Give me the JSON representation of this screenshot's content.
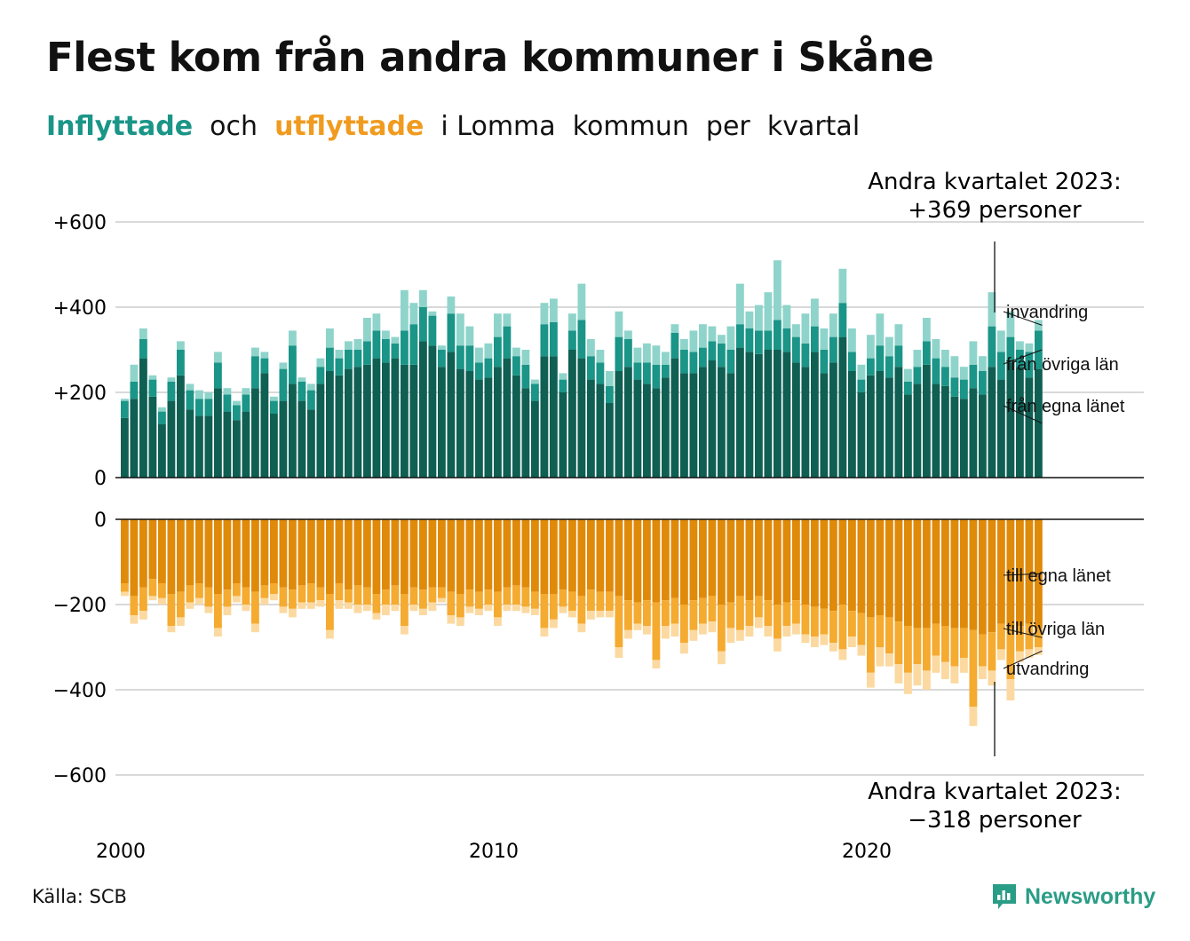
{
  "title": "Flest kom från andra kommuner i Skåne",
  "subtitle": {
    "in_word": "Inflyttade",
    "mid": "  och  ",
    "out_word": "utflyttade",
    "rest": "  i Lomma  kommun  per  kvartal"
  },
  "source": "Källa: SCB",
  "brand": "Newsworthy",
  "colors": {
    "in_own": "#0f5f53",
    "in_other": "#1a9587",
    "in_immig": "#8fd4cb",
    "out_own": "#e08a0a",
    "out_other": "#f5aa30",
    "out_emig": "#fbd9a0",
    "grid": "#d9d9d9",
    "axis": "#111111"
  },
  "annotations": {
    "top": [
      "Andra kvartalet 2023:",
      "+369 personer"
    ],
    "bottom": [
      "Andra kvartalet 2023:",
      "−318 personer"
    ]
  },
  "chart_data": {
    "type": "bar",
    "stacked": true,
    "x_start": "2000 Q1",
    "x_end": "2023 Q2",
    "x_ticks": [
      "2000",
      "2010",
      "2020"
    ],
    "top_panel": {
      "y_ticks": [
        "+600",
        "+400",
        "+200",
        "0"
      ],
      "ylim": [
        0,
        600
      ],
      "series": [
        {
          "name": "från egna länet",
          "values": [
            140,
            185,
            280,
            190,
            125,
            180,
            240,
            160,
            145,
            145,
            210,
            155,
            135,
            155,
            210,
            245,
            150,
            180,
            220,
            180,
            160,
            220,
            250,
            240,
            255,
            260,
            265,
            280,
            270,
            280,
            265,
            265,
            320,
            310,
            260,
            295,
            255,
            250,
            230,
            235,
            260,
            280,
            240,
            210,
            180,
            285,
            285,
            200,
            300,
            280,
            230,
            220,
            175,
            250,
            260,
            230,
            220,
            210,
            235,
            280,
            245,
            245,
            260,
            275,
            260,
            245,
            305,
            295,
            290,
            300,
            300,
            295,
            270,
            260,
            295,
            245,
            270,
            330,
            250,
            200,
            240,
            250,
            235,
            260,
            195,
            220,
            265,
            220,
            215,
            190,
            185,
            210,
            195,
            260,
            230,
            270,
            260,
            235,
            255
          ]
        },
        {
          "name": "från övriga län",
          "values": [
            40,
            40,
            45,
            40,
            30,
            45,
            60,
            45,
            40,
            40,
            60,
            40,
            35,
            40,
            75,
            35,
            30,
            75,
            90,
            45,
            45,
            40,
            55,
            40,
            45,
            40,
            55,
            65,
            55,
            35,
            80,
            95,
            80,
            70,
            40,
            90,
            55,
            60,
            40,
            45,
            70,
            75,
            45,
            55,
            40,
            75,
            80,
            30,
            45,
            90,
            55,
            50,
            40,
            80,
            65,
            40,
            50,
            55,
            30,
            60,
            55,
            50,
            45,
            45,
            55,
            55,
            55,
            55,
            55,
            45,
            70,
            55,
            60,
            55,
            60,
            55,
            60,
            80,
            45,
            30,
            40,
            60,
            50,
            50,
            30,
            40,
            55,
            60,
            45,
            45,
            45,
            55,
            55,
            95,
            65,
            60,
            40,
            60,
            90
          ]
        },
        {
          "name": "invandring",
          "values": [
            5,
            40,
            25,
            10,
            10,
            10,
            20,
            15,
            20,
            15,
            25,
            15,
            10,
            15,
            20,
            15,
            10,
            15,
            35,
            10,
            15,
            20,
            45,
            20,
            20,
            25,
            55,
            40,
            20,
            15,
            95,
            50,
            40,
            10,
            10,
            40,
            75,
            45,
            35,
            35,
            55,
            30,
            20,
            35,
            10,
            50,
            55,
            15,
            40,
            85,
            40,
            30,
            35,
            60,
            20,
            35,
            45,
            45,
            30,
            20,
            25,
            50,
            55,
            35,
            20,
            55,
            95,
            40,
            60,
            90,
            140,
            55,
            30,
            70,
            65,
            50,
            55,
            80,
            55,
            35,
            55,
            75,
            45,
            50,
            30,
            40,
            55,
            45,
            40,
            50,
            30,
            55,
            35,
            80,
            50,
            60,
            20,
            20,
            25
          ]
        }
      ]
    },
    "bottom_panel": {
      "y_ticks": [
        "0",
        "−200",
        "−400",
        "−600"
      ],
      "ylim": [
        -600,
        0
      ],
      "series": [
        {
          "name": "till egna länet",
          "values": [
            -150,
            -180,
            -160,
            -140,
            -150,
            -175,
            -170,
            -155,
            -150,
            -160,
            -175,
            -165,
            -150,
            -160,
            -170,
            -155,
            -150,
            -160,
            -165,
            -155,
            -150,
            -160,
            -175,
            -150,
            -165,
            -155,
            -160,
            -175,
            -165,
            -155,
            -175,
            -160,
            -165,
            -160,
            -160,
            -170,
            -175,
            -165,
            -170,
            -165,
            -170,
            -160,
            -155,
            -160,
            -170,
            -175,
            -175,
            -165,
            -170,
            -180,
            -165,
            -170,
            -170,
            -180,
            -190,
            -195,
            -190,
            -195,
            -190,
            -185,
            -200,
            -190,
            -185,
            -180,
            -200,
            -195,
            -180,
            -190,
            -180,
            -190,
            -200,
            -195,
            -190,
            -200,
            -205,
            -210,
            -215,
            -200,
            -215,
            -220,
            -230,
            -225,
            -230,
            -240,
            -250,
            -255,
            -255,
            -245,
            -250,
            -255,
            -255,
            -260,
            -270,
            -265,
            -245,
            -255,
            -250,
            -245,
            -255
          ]
        },
        {
          "name": "till övriga län",
          "values": [
            -20,
            -45,
            -55,
            -40,
            -35,
            -75,
            -60,
            -40,
            -35,
            -45,
            -80,
            -40,
            -30,
            -40,
            -75,
            -30,
            -25,
            -45,
            -45,
            -40,
            -45,
            -30,
            -85,
            -40,
            -30,
            -45,
            -40,
            -45,
            -35,
            -45,
            -75,
            -40,
            -45,
            -35,
            -25,
            -55,
            -55,
            -40,
            -40,
            -35,
            -60,
            -40,
            -45,
            -45,
            -40,
            -80,
            -60,
            -40,
            -45,
            -65,
            -50,
            -45,
            -45,
            -120,
            -70,
            -50,
            -60,
            -135,
            -60,
            -60,
            -90,
            -70,
            -60,
            -60,
            -110,
            -60,
            -80,
            -60,
            -50,
            -60,
            -80,
            -55,
            -55,
            -70,
            -70,
            -60,
            -75,
            -105,
            -60,
            -75,
            -130,
            -75,
            -85,
            -100,
            -110,
            -85,
            -100,
            -75,
            -85,
            -90,
            -70,
            -180,
            -75,
            -90,
            -60,
            -120,
            -60,
            -60,
            -45
          ]
        },
        {
          "name": "utvandring",
          "values": [
            -10,
            -20,
            -20,
            -10,
            -15,
            -15,
            -20,
            -15,
            -15,
            -15,
            -20,
            -20,
            -15,
            -15,
            -20,
            -15,
            -15,
            -15,
            -20,
            -15,
            -15,
            -15,
            -20,
            -20,
            -15,
            -20,
            -15,
            -15,
            -25,
            -15,
            -20,
            -15,
            -15,
            -20,
            -10,
            -20,
            -20,
            -15,
            -15,
            -15,
            -20,
            -15,
            -15,
            -15,
            -15,
            -20,
            -20,
            -15,
            -15,
            -20,
            -20,
            -15,
            -15,
            -25,
            -20,
            -15,
            -20,
            -20,
            -30,
            -30,
            -25,
            -25,
            -25,
            -25,
            -30,
            -35,
            -25,
            -25,
            -25,
            -25,
            -30,
            -25,
            -25,
            -20,
            -25,
            -25,
            -20,
            -25,
            -25,
            -25,
            -35,
            -45,
            -30,
            -45,
            -50,
            -50,
            -45,
            -40,
            -40,
            -40,
            -35,
            -45,
            -30,
            -35,
            -25,
            -50,
            -25,
            -20,
            -18
          ]
        }
      ]
    }
  }
}
